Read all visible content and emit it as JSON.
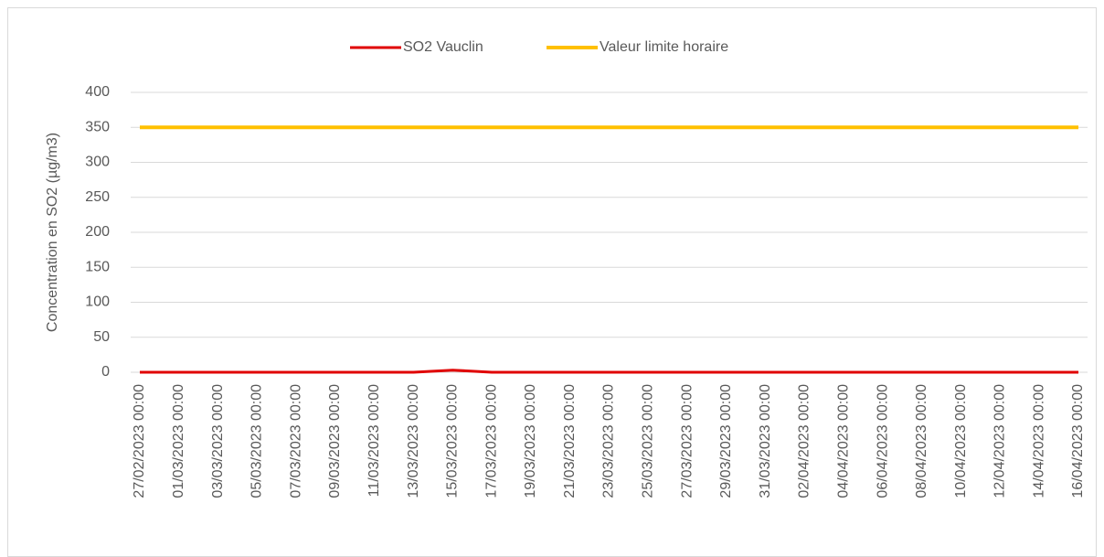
{
  "chart_data": {
    "type": "line",
    "y_label": "Concentration en SO2 (µg/m3)",
    "categories": [
      "27/02/2023 00:00",
      "01/03/2023 00:00",
      "03/03/2023 00:00",
      "05/03/2023 00:00",
      "07/03/2023 00:00",
      "09/03/2023 00:00",
      "11/03/2023 00:00",
      "13/03/2023 00:00",
      "15/03/2023 00:00",
      "17/03/2023 00:00",
      "19/03/2023 00:00",
      "21/03/2023 00:00",
      "23/03/2023 00:00",
      "25/03/2023 00:00",
      "27/03/2023 00:00",
      "29/03/2023 00:00",
      "31/03/2023 00:00",
      "02/04/2023 00:00",
      "04/04/2023 00:00",
      "06/04/2023 00:00",
      "08/04/2023 00:00",
      "10/04/2023 00:00",
      "12/04/2023 00:00",
      "14/04/2023 00:00",
      "16/04/2023 00:00"
    ],
    "series": [
      {
        "name": "SO2 Vauclin",
        "color": "#e00000",
        "width": 3,
        "values": [
          0,
          0,
          0,
          0,
          0,
          0,
          0,
          0,
          3,
          0,
          0,
          0,
          0,
          0,
          0,
          0,
          0,
          0,
          0,
          0,
          0,
          0,
          0,
          0,
          0
        ]
      },
      {
        "name": "Valeur limite horaire",
        "color": "#ffc000",
        "width": 4,
        "values": [
          350,
          350,
          350,
          350,
          350,
          350,
          350,
          350,
          350,
          350,
          350,
          350,
          350,
          350,
          350,
          350,
          350,
          350,
          350,
          350,
          350,
          350,
          350,
          350,
          350
        ]
      }
    ],
    "ylim": [
      0,
      400
    ],
    "yticks": [
      0,
      50,
      100,
      150,
      200,
      250,
      300,
      350,
      400
    ],
    "grid": true,
    "legend": "top"
  }
}
